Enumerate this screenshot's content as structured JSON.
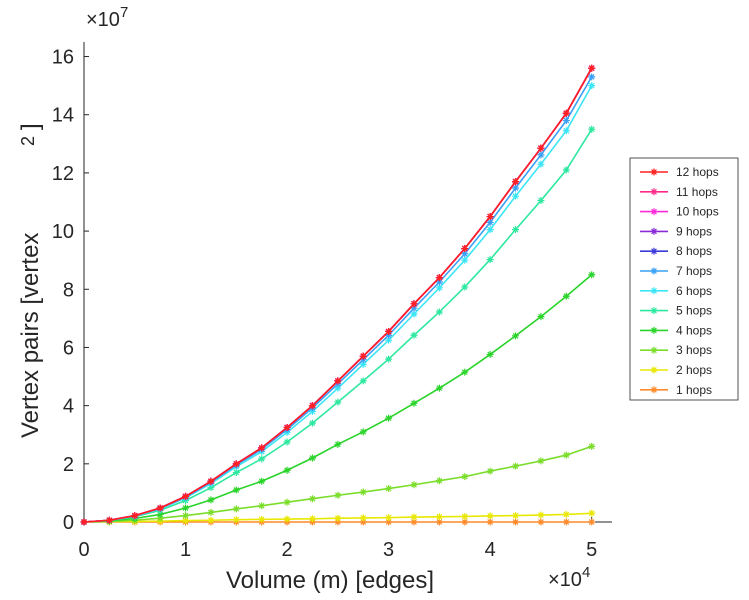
{
  "chart_data": {
    "type": "line",
    "xlabel": "Volume (m) [edges]",
    "ylabel": "Vertex pairs [vertex",
    "ylabel_superscript": "2",
    "ylabel_close": "]",
    "x_multiplier": {
      "base": "×10",
      "exponent": "4"
    },
    "y_multiplier": {
      "base": "×10",
      "exponent": "7"
    },
    "xlim": [
      0,
      5.2
    ],
    "ylim": [
      0,
      16.5
    ],
    "x_ticks": [
      0,
      1,
      2,
      3,
      4,
      5
    ],
    "y_ticks": [
      0,
      2,
      4,
      6,
      8,
      10,
      12,
      14,
      16
    ],
    "x_tick_labels": [
      "0",
      "1",
      "2",
      "3",
      "4",
      "5"
    ],
    "y_tick_labels": [
      "0",
      "2",
      "4",
      "6",
      "8",
      "10",
      "12",
      "14",
      "16"
    ],
    "grid": false,
    "legend_position": "right",
    "x": [
      0,
      0.25,
      0.5,
      0.75,
      1,
      1.25,
      1.5,
      1.75,
      2,
      2.25,
      2.5,
      2.75,
      3,
      3.25,
      3.5,
      3.75,
      4,
      4.25,
      4.5,
      4.75,
      5
    ],
    "series": [
      {
        "name": "12 hops",
        "color": "#ff2020",
        "values": [
          0,
          0.06,
          0.22,
          0.48,
          0.88,
          1.4,
          2.0,
          2.55,
          3.25,
          4.0,
          4.85,
          5.7,
          6.55,
          7.5,
          8.4,
          9.4,
          10.5,
          11.7,
          12.85,
          14.05,
          15.6
        ]
      },
      {
        "name": "11 hops",
        "color": "#ff2a8a",
        "values": [
          0,
          0.06,
          0.22,
          0.48,
          0.88,
          1.4,
          2.0,
          2.55,
          3.25,
          4.0,
          4.85,
          5.7,
          6.55,
          7.5,
          8.4,
          9.4,
          10.5,
          11.7,
          12.85,
          14.05,
          15.6
        ]
      },
      {
        "name": "10 hops",
        "color": "#ff2ad9",
        "values": [
          0,
          0.06,
          0.22,
          0.48,
          0.88,
          1.4,
          2.0,
          2.55,
          3.25,
          4.0,
          4.85,
          5.7,
          6.55,
          7.5,
          8.4,
          9.4,
          10.5,
          11.7,
          12.85,
          14.05,
          15.6
        ]
      },
      {
        "name": "9 hops",
        "color": "#8a2ad9",
        "values": [
          0,
          0.06,
          0.22,
          0.48,
          0.88,
          1.4,
          2.0,
          2.55,
          3.25,
          4.0,
          4.85,
          5.7,
          6.55,
          7.5,
          8.4,
          9.4,
          10.5,
          11.7,
          12.85,
          14.05,
          15.6
        ]
      },
      {
        "name": "8 hops",
        "color": "#3a3ad9",
        "values": [
          0,
          0.06,
          0.22,
          0.48,
          0.88,
          1.4,
          2.0,
          2.55,
          3.25,
          4.0,
          4.85,
          5.7,
          6.55,
          7.5,
          8.4,
          9.4,
          10.5,
          11.7,
          12.85,
          14.05,
          15.6
        ]
      },
      {
        "name": "7 hops",
        "color": "#3aa0f5",
        "values": [
          0,
          0.06,
          0.21,
          0.47,
          0.86,
          1.37,
          1.96,
          2.5,
          3.18,
          3.92,
          4.75,
          5.58,
          6.42,
          7.35,
          8.25,
          9.22,
          10.3,
          11.48,
          12.62,
          13.8,
          15.3
        ]
      },
      {
        "name": "6 hops",
        "color": "#3ae6f5",
        "values": [
          0,
          0.06,
          0.2,
          0.45,
          0.83,
          1.32,
          1.9,
          2.42,
          3.08,
          3.8,
          4.6,
          5.42,
          6.25,
          7.15,
          8.05,
          9.0,
          10.05,
          11.2,
          12.3,
          13.45,
          15.0
        ]
      },
      {
        "name": "5 hops",
        "color": "#2ee8a0",
        "values": [
          0,
          0.05,
          0.18,
          0.4,
          0.74,
          1.18,
          1.7,
          2.17,
          2.75,
          3.4,
          4.12,
          4.85,
          5.6,
          6.42,
          7.22,
          8.08,
          9.02,
          10.05,
          11.05,
          12.1,
          13.5
        ]
      },
      {
        "name": "4 hops",
        "color": "#2ad42a",
        "values": [
          0,
          0.04,
          0.12,
          0.26,
          0.48,
          0.76,
          1.1,
          1.4,
          1.78,
          2.2,
          2.67,
          3.1,
          3.57,
          4.08,
          4.6,
          5.15,
          5.76,
          6.4,
          7.06,
          7.76,
          8.5
        ]
      },
      {
        "name": "3 hops",
        "color": "#7add2a",
        "values": [
          0,
          0.02,
          0.06,
          0.13,
          0.22,
          0.33,
          0.45,
          0.56,
          0.68,
          0.8,
          0.92,
          1.03,
          1.15,
          1.28,
          1.42,
          1.56,
          1.75,
          1.92,
          2.1,
          2.3,
          2.6
        ]
      },
      {
        "name": "2 hops",
        "color": "#e8e800",
        "values": [
          0,
          0.01,
          0.02,
          0.03,
          0.05,
          0.06,
          0.08,
          0.09,
          0.1,
          0.11,
          0.13,
          0.14,
          0.15,
          0.17,
          0.18,
          0.19,
          0.21,
          0.22,
          0.24,
          0.26,
          0.3
        ]
      },
      {
        "name": "1 hops",
        "color": "#ff8a2a",
        "values": [
          0,
          0,
          0,
          0,
          0,
          0,
          0,
          0,
          0,
          0,
          0,
          0,
          0,
          0,
          0,
          0,
          0,
          0,
          0,
          0,
          0
        ]
      }
    ]
  }
}
